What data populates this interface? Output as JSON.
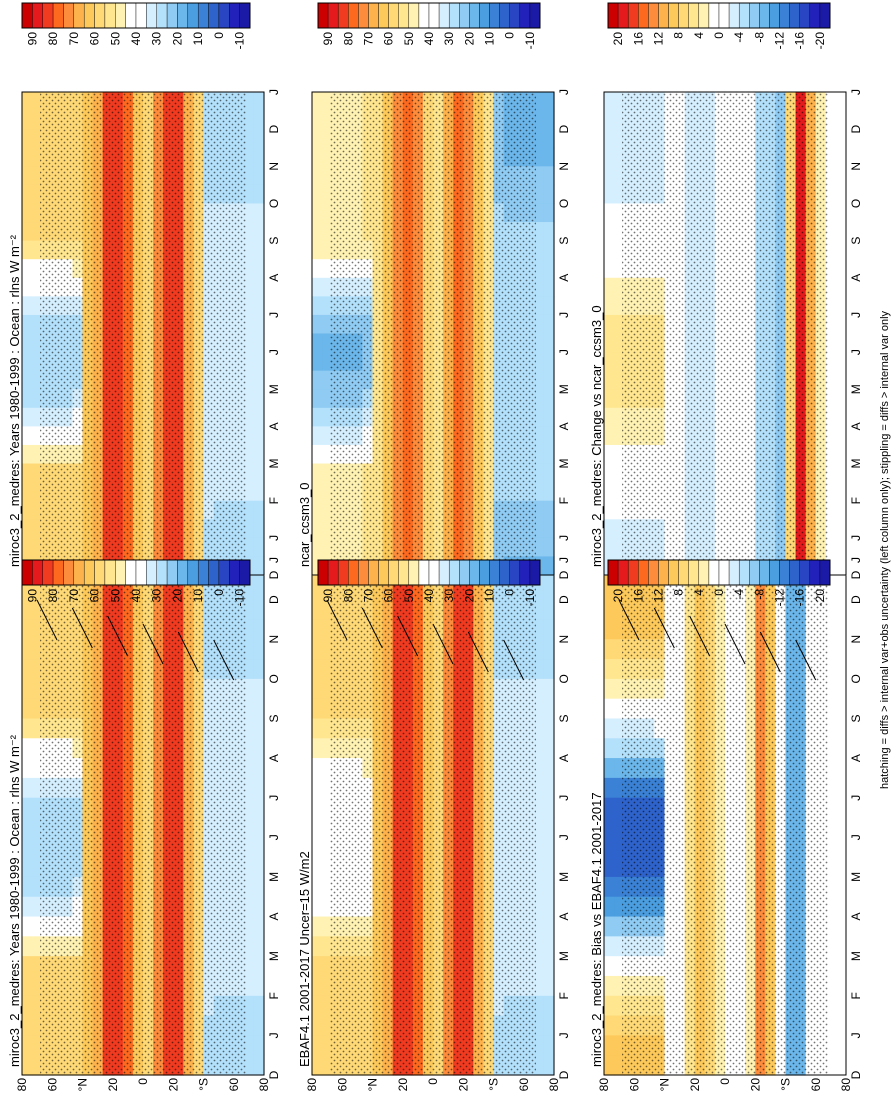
{
  "figure": {
    "footnote": "hatching = diffs > internal var+obs uncertainty (left column only); stippling = diffs > internal var only",
    "orientation": "rotated 90 degrees counter-clockwise"
  },
  "chart_data": [
    {
      "type": "heatmap",
      "title": "miroc3_2_medres: Years 1980-1999 : Ocean : rlns W m⁻²",
      "months": [
        "D",
        "J",
        "F",
        "M",
        "A",
        "M",
        "J",
        "J",
        "A",
        "S",
        "O",
        "N",
        "D",
        "J"
      ],
      "lat_ticks": [
        "80",
        "60",
        "°N",
        "20",
        "0",
        "20",
        "°S",
        "60",
        "80"
      ],
      "colorbar": {
        "ticks": [
          "90",
          "80",
          "70",
          "60",
          "50",
          "40",
          "30",
          "20",
          "10",
          "0",
          "-10"
        ],
        "range": [
          -15,
          95
        ],
        "levels": 22
      },
      "kind": "abs_model",
      "hatching": true,
      "stippling": true
    },
    {
      "type": "heatmap",
      "title": "EBAF4.1 2001-2017 Uncer=15 W/m2",
      "months": [
        "D",
        "J",
        "F",
        "M",
        "A",
        "M",
        "J",
        "J",
        "A",
        "S",
        "O",
        "N",
        "D",
        "J"
      ],
      "lat_ticks": [
        "80",
        "60",
        "°N",
        "20",
        "0",
        "20",
        "°S",
        "60",
        "80"
      ],
      "colorbar": {
        "ticks": [
          "90",
          "80",
          "70",
          "60",
          "50",
          "40",
          "30",
          "20",
          "10",
          "0",
          "-10"
        ],
        "range": [
          -15,
          95
        ],
        "levels": 22
      },
      "kind": "abs_obs",
      "hatching": true,
      "stippling": true
    },
    {
      "type": "heatmap",
      "title": "miroc3_2_medres: Bias vs EBAF4.1 2001-2017",
      "months": [
        "D",
        "J",
        "F",
        "M",
        "A",
        "M",
        "J",
        "J",
        "A",
        "S",
        "O",
        "N",
        "D",
        "J"
      ],
      "lat_ticks": [
        "80",
        "60",
        "°N",
        "20",
        "0",
        "20",
        "°S",
        "60",
        "80"
      ],
      "colorbar": {
        "ticks": [
          "20",
          "16",
          "12",
          "8",
          "4",
          "0",
          "-4",
          "-8",
          "-12",
          "-16",
          "-20"
        ],
        "range": [
          -22,
          22
        ],
        "levels": 22
      },
      "kind": "bias",
      "hatching": true,
      "stippling": true
    },
    {
      "type": "heatmap",
      "title": "miroc3_2_medres: Years 1980-1999 : Ocean : rlns W m⁻²",
      "months": [
        "D",
        "J",
        "F",
        "M",
        "A",
        "M",
        "J",
        "J",
        "A",
        "S",
        "O",
        "N",
        "D",
        "J"
      ],
      "lat_ticks": [
        "80",
        "60",
        "°N",
        "20",
        "0",
        "20",
        "°S",
        "60",
        "80"
      ],
      "colorbar": {
        "ticks": [
          "90",
          "80",
          "70",
          "60",
          "50",
          "40",
          "30",
          "20",
          "10",
          "0",
          "-10"
        ],
        "range": [
          -15,
          95
        ],
        "levels": 22
      },
      "kind": "abs_model",
      "hatching": false,
      "stippling": true
    },
    {
      "type": "heatmap",
      "title": "ncar_ccsm3_0",
      "months": [
        "D",
        "J",
        "F",
        "M",
        "A",
        "M",
        "J",
        "J",
        "A",
        "S",
        "O",
        "N",
        "D",
        "J"
      ],
      "lat_ticks": [
        "80",
        "60",
        "°N",
        "20",
        "0",
        "20",
        "°S",
        "60",
        "80"
      ],
      "colorbar": {
        "ticks": [
          "90",
          "80",
          "70",
          "60",
          "50",
          "40",
          "30",
          "20",
          "10",
          "0",
          "-10"
        ],
        "range": [
          -15,
          95
        ],
        "levels": 22
      },
      "kind": "abs_ref",
      "hatching": false,
      "stippling": true
    },
    {
      "type": "heatmap",
      "title": "miroc3_2_medres: Change vs ncar_ccsm3_0",
      "months": [
        "D",
        "J",
        "F",
        "M",
        "A",
        "M",
        "J",
        "J",
        "A",
        "S",
        "O",
        "N",
        "D",
        "J"
      ],
      "lat_ticks": [
        "80",
        "60",
        "°N",
        "20",
        "0",
        "20",
        "°S",
        "60",
        "80"
      ],
      "colorbar": {
        "ticks": [
          "20",
          "16",
          "12",
          "8",
          "4",
          "0",
          "-4",
          "-8",
          "-12",
          "-16",
          "-20"
        ],
        "range": [
          -22,
          22
        ],
        "levels": 22
      },
      "kind": "change",
      "hatching": false,
      "stippling": true
    }
  ]
}
